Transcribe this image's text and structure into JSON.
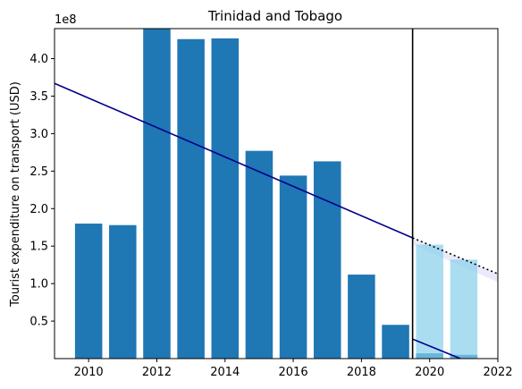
{
  "chart_data": {
    "type": "bar",
    "title": "Trinidad and Tobago",
    "xlabel": "",
    "ylabel": "Tourist expenditure on transport (USD)",
    "y_multiplier_label": "1e8",
    "xlim": [
      2009,
      2022
    ],
    "ylim": [
      0,
      440000000
    ],
    "x_ticks": [
      2010,
      2012,
      2014,
      2016,
      2018,
      2020,
      2022
    ],
    "y_ticks": [
      50000000,
      100000000,
      150000000,
      200000000,
      250000000,
      300000000,
      350000000,
      400000000
    ],
    "y_tick_labels": [
      "0.5",
      "1.0",
      "1.5",
      "2.0",
      "2.5",
      "3.0",
      "3.5",
      "4.0"
    ],
    "bar_width": 0.8,
    "series": [
      {
        "x": [
          2010,
          2011,
          2012,
          2013,
          2014,
          2015,
          2016,
          2017,
          2018,
          2019,
          2020,
          2021
        ],
        "values": [
          180000000,
          178000000,
          440000000,
          426000000,
          427000000,
          277000000,
          244000000,
          263000000,
          112000000,
          45000000,
          7000000,
          5000000
        ],
        "color": "#1f77b4"
      },
      {
        "x": [
          2020,
          2021
        ],
        "values": [
          152000000,
          132000000
        ],
        "color": "#87ceeb",
        "alpha": 0.7
      }
    ],
    "trend_line": {
      "x": [
        2009,
        2019.5
      ],
      "y": [
        367000000,
        161000000
      ],
      "color": "#00008b"
    },
    "forecast_line": {
      "x": [
        2019.5,
        2022
      ],
      "y": [
        161000000,
        113000000
      ],
      "color": "#000000",
      "style": "dotted"
    },
    "forecast_band": {
      "x": [
        2019.5,
        2022
      ],
      "upper": [
        161000000,
        113000000
      ],
      "lower": [
        152000000,
        102000000
      ],
      "color": "#e6e6fa"
    },
    "drop_line": {
      "x": [
        2019.5,
        2020.9
      ],
      "y": [
        26000000,
        0
      ],
      "color": "#00008b"
    },
    "vertical_marker": {
      "x": 2019.5,
      "color": "#000000"
    }
  }
}
